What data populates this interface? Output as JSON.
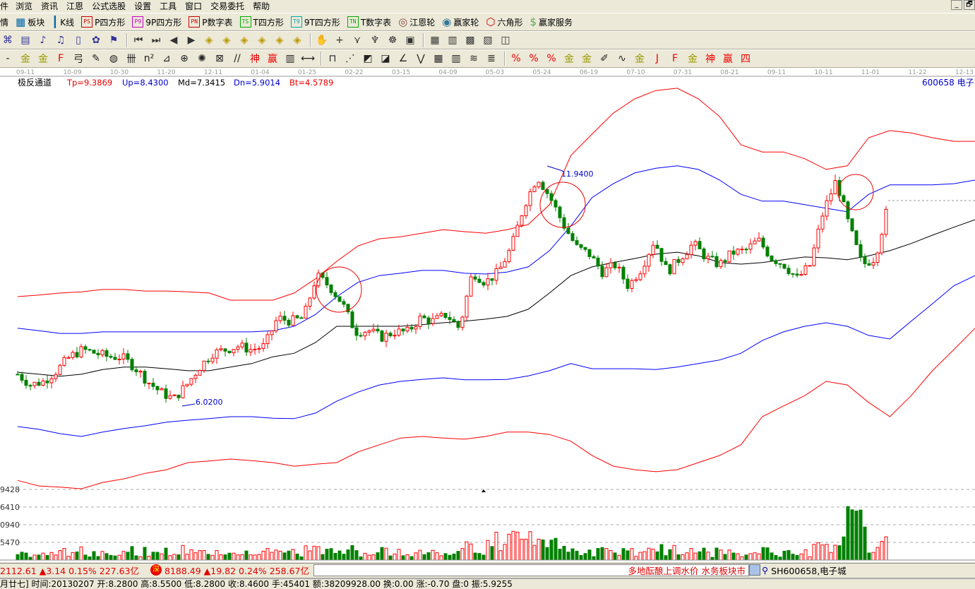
{
  "menu": [
    "件",
    "浏览",
    "资讯",
    "江恩",
    "公式选股",
    "设置",
    "工具",
    "窗口",
    "交易委托",
    "帮助"
  ],
  "window_buttons": [
    "_",
    "🗗"
  ],
  "toolbar1": [
    {
      "icon": "market-icon",
      "glyph": "",
      "label": "情"
    },
    {
      "icon": "blocks-icon",
      "glyph": "▦",
      "label": "板块"
    },
    {
      "icon": "kline-icon",
      "glyph": "┃",
      "label": "K线"
    },
    {
      "icon": "ps-icon",
      "glyph": "PS",
      "label": "P四方形",
      "color": "#cc0000"
    },
    {
      "icon": "p9-icon",
      "glyph": "P9",
      "label": "9P四方形",
      "color": "#cc00cc"
    },
    {
      "icon": "pn-icon",
      "glyph": "PN",
      "label": "P数字表",
      "color": "#cc0000"
    },
    {
      "icon": "ts-icon",
      "glyph": "TS",
      "label": "T四方形",
      "color": "#00aa00"
    },
    {
      "icon": "t9-icon",
      "glyph": "T9",
      "label": "9T四方形",
      "color": "#00aaaa"
    },
    {
      "icon": "tn-icon",
      "glyph": "TN",
      "label": "T数字表",
      "color": "#00aa00"
    },
    {
      "icon": "gann-wheel-icon",
      "glyph": "◎",
      "label": "江恩轮",
      "color": "#884444"
    },
    {
      "icon": "winner-wheel-icon",
      "glyph": "◉",
      "label": "赢家轮",
      "color": "#337799"
    },
    {
      "icon": "hexagon-icon",
      "glyph": "⬡",
      "label": "六角形",
      "color": "#cc0000"
    },
    {
      "icon": "dollar-icon",
      "glyph": "$",
      "label": "赢家服务",
      "color": "#55aa55"
    }
  ],
  "toolbar2": [
    "⌘",
    "▤",
    "♪",
    "♫",
    "▯",
    "✿",
    "⚑",
    "⏮",
    "⏭",
    "◀",
    "▶",
    "◈",
    "◈",
    "◈",
    "◈",
    "◈",
    "◈",
    "✋",
    "+",
    "⋎",
    "♆",
    "☸",
    "▣",
    "▦",
    "▥",
    "▩",
    "▧",
    "◫"
  ],
  "toolbar3": [
    "-",
    "金",
    "金",
    "F",
    "弓",
    "✎",
    "◍",
    "卌",
    "n²",
    "⊿",
    "⊕",
    "✺",
    "⊠",
    "//",
    "神",
    "赢",
    "▥",
    "⟷",
    "⊓",
    "⋰",
    "◩",
    "◪",
    "∠",
    "⋁",
    "▦",
    "▥",
    "≋",
    "≣",
    "%",
    "%",
    "%",
    "金",
    "金",
    "✐",
    "∿",
    "金",
    "J",
    "F",
    "金",
    "神",
    "赢",
    "四"
  ],
  "axis_dates": [
    "09-11",
    "10-09",
    "10-30",
    "11-20",
    "12-11",
    "01-04",
    "01-25",
    "02-22",
    "03-15",
    "04-09",
    "05-03",
    "05-24",
    "06-19",
    "07-10",
    "07-31",
    "08-21",
    "09-11",
    "10-11",
    "11-01",
    "11-22",
    "12-13"
  ],
  "indicator": {
    "name": "极反通道",
    "tp": "Tp=9.3869",
    "up": "Up=8.4300",
    "md": "Md=7.3415",
    "dn": "Dn=5.9014",
    "bt": "Bt=4.5789"
  },
  "stock_label": "600658 电子",
  "annotations": {
    "high": "11.9400",
    "low": "6.0200"
  },
  "colors": {
    "up": "#ff0000",
    "down": "#008000",
    "channel_outer": "#ff0000",
    "channel_inner": "#0000ff",
    "ma": "#000000",
    "date_text": "#999999"
  },
  "chart_data": {
    "type": "candlestick",
    "price_range": [
      3.6,
      15.0
    ],
    "closes": [
      6.77,
      6.5,
      6.59,
      6.86,
      7.21,
      7.39,
      7.3,
      7.21,
      7.21,
      6.95,
      6.59,
      6.32,
      6.14,
      6.5,
      6.95,
      7.3,
      7.39,
      7.48,
      7.39,
      7.48,
      8.19,
      8.11,
      8.19,
      9.26,
      8.99,
      8.55,
      7.84,
      7.88,
      7.7,
      7.84,
      7.84,
      8.19,
      8.11,
      8.28,
      7.93,
      9.35,
      9.09,
      9.35,
      9.98,
      11.05,
      11.76,
      11.22,
      10.55,
      9.98,
      9.8,
      9.35,
      9.53,
      8.99,
      9.44,
      10.16,
      9.35,
      9.71,
      10.07,
      9.71,
      9.53,
      9.84,
      9.89,
      10.16,
      9.71,
      9.53,
      9.18,
      9.53,
      10.87,
      11.67,
      10.51,
      9.53,
      9.71,
      11.05
    ],
    "series": [
      {
        "key": "tp",
        "color": "#ff0000",
        "values": [
          8.73,
          8.77,
          8.82,
          8.85,
          8.91,
          8.91,
          8.87,
          8.87,
          8.85,
          8.82,
          8.64,
          8.64,
          8.64,
          8.82,
          9.18,
          9.62,
          10.01,
          10.19,
          10.24,
          10.33,
          10.42,
          10.37,
          10.33,
          10.42,
          10.55,
          11.05,
          12.29,
          12.83,
          13.36,
          13.72,
          13.93,
          13.99,
          13.72,
          13.27,
          12.56,
          12.38,
          12.38,
          12.21,
          11.94,
          12.03,
          12.74,
          12.92,
          12.86,
          12.74,
          12.65,
          12.65
        ]
      },
      {
        "key": "up",
        "color": "#0000ff",
        "values": [
          7.93,
          7.87,
          7.8,
          7.8,
          7.84,
          7.84,
          7.84,
          7.84,
          7.84,
          7.84,
          7.84,
          7.84,
          7.87,
          7.98,
          8.28,
          8.73,
          9.09,
          9.26,
          9.32,
          9.39,
          9.39,
          9.32,
          9.3,
          9.35,
          9.48,
          9.89,
          10.51,
          11.23,
          11.58,
          11.85,
          11.97,
          12.03,
          11.94,
          11.67,
          11.31,
          11.14,
          11.14,
          11.05,
          10.96,
          10.87,
          11.31,
          11.55,
          11.55,
          11.55,
          11.58,
          11.67
        ]
      },
      {
        "key": "md",
        "color": "#000000",
        "values": [
          6.82,
          6.77,
          6.72,
          6.77,
          6.89,
          6.95,
          6.95,
          6.91,
          6.86,
          6.86,
          6.95,
          7.04,
          7.21,
          7.3,
          7.57,
          7.98,
          7.98,
          7.98,
          7.98,
          8.02,
          8.07,
          8.11,
          8.16,
          8.23,
          8.41,
          8.82,
          9.26,
          9.48,
          9.59,
          9.69,
          9.8,
          9.85,
          9.76,
          9.59,
          9.55,
          9.59,
          9.66,
          9.73,
          9.71,
          9.66,
          9.76,
          9.89,
          10.07,
          10.28,
          10.48,
          10.67
        ]
      },
      {
        "key": "dn",
        "color": "#0000ff",
        "values": [
          5.45,
          5.38,
          5.27,
          5.2,
          5.31,
          5.4,
          5.47,
          5.56,
          5.61,
          5.65,
          5.7,
          5.7,
          5.66,
          5.65,
          5.79,
          6.09,
          6.32,
          6.5,
          6.59,
          6.64,
          6.68,
          6.63,
          6.63,
          6.64,
          6.73,
          6.86,
          7.04,
          6.91,
          6.91,
          6.91,
          6.89,
          6.95,
          7.04,
          7.13,
          7.3,
          7.62,
          7.84,
          7.98,
          8.07,
          7.98,
          7.75,
          7.66,
          8.11,
          8.55,
          9.0,
          9.26
        ]
      },
      {
        "key": "bt",
        "color": "#ff0000",
        "values": [
          4.09,
          3.95,
          3.92,
          3.88,
          4.04,
          4.13,
          4.27,
          4.36,
          4.54,
          4.58,
          4.63,
          4.59,
          4.54,
          4.45,
          4.5,
          4.54,
          4.81,
          4.99,
          5.16,
          5.2,
          5.16,
          5.13,
          5.2,
          5.31,
          5.31,
          5.25,
          5.08,
          4.72,
          4.45,
          4.36,
          4.31,
          4.36,
          4.54,
          4.72,
          4.99,
          5.7,
          5.97,
          6.23,
          6.59,
          6.5,
          6.06,
          5.7,
          6.23,
          6.86,
          7.39,
          7.93
        ]
      }
    ],
    "volume_axis": [
      "9428",
      "6410",
      "0940",
      "5470"
    ]
  },
  "status": {
    "sh": "2112.61 ▲3.14 0.15% 227.63亿",
    "sz_badge": "深",
    "sz": "8188.49 ▲19.82 0.24% 258.67亿",
    "ticker": "多地酝酿上调水价 水务板块市",
    "symbol": "SH600658,电子城",
    "detail": "月廿七] 时间:20130207 开:8.2800 高:8.5500 低:8.2800 收:8.4600 手:45401 额:38209928.00 换:0.00 涨:-0.70 盘:0 振:5.9255"
  }
}
